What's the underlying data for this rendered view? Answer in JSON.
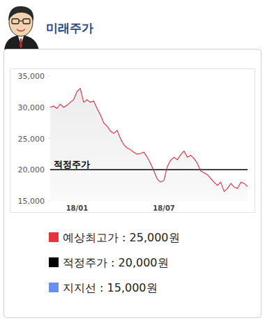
{
  "chart_data": {
    "type": "line",
    "title": "미래주가",
    "categories": [
      null,
      null,
      null,
      null,
      null,
      null,
      null,
      null,
      "18/01",
      null,
      null,
      null,
      null,
      null,
      null,
      null,
      null,
      null,
      null,
      null,
      null,
      null,
      null,
      null,
      null,
      null,
      null,
      null,
      null,
      null,
      null,
      null,
      null,
      null,
      "18/07",
      null,
      null,
      null,
      null,
      null,
      null,
      null,
      null,
      null,
      null,
      null,
      null,
      null,
      null,
      null,
      null,
      null,
      null,
      null,
      null,
      null,
      null,
      null,
      null,
      null
    ],
    "values": [
      30000,
      30200,
      29800,
      30500,
      30000,
      30300,
      30800,
      31200,
      32500,
      33000,
      30800,
      31200,
      30800,
      31000,
      29800,
      28800,
      27500,
      27000,
      26200,
      25800,
      26300,
      25000,
      24000,
      23500,
      23200,
      22800,
      22500,
      22600,
      22800,
      22000,
      21000,
      19800,
      18500,
      18000,
      18300,
      20500,
      21500,
      22000,
      21600,
      22400,
      23000,
      22000,
      22300,
      21800,
      21000,
      19800,
      19500,
      19200,
      18600,
      18000,
      17500,
      18000,
      16500,
      17000,
      17800,
      17200,
      17000,
      18000,
      17800,
      17300
    ],
    "color": "#e8283c",
    "ylim": [
      15000,
      35000
    ],
    "yticks": [
      {
        "value": 15000,
        "label": "15,000"
      },
      {
        "value": 20000,
        "label": "20,000"
      },
      {
        "value": 25000,
        "label": "25,000"
      },
      {
        "value": 30000,
        "label": "30,000"
      },
      {
        "value": 35000,
        "label": "35,000"
      }
    ],
    "levels": [
      {
        "name": "예상최고가",
        "label": "예상최고가 : 25,000원",
        "value": 25000,
        "color": "#e8323c",
        "line_style": "none"
      },
      {
        "name": "적정주가",
        "label": "적정주가 : 20,000원",
        "value": 20000,
        "color": "#000000",
        "line_style": "solid"
      },
      {
        "name": "지지선",
        "label": "지지선 : 15,000원",
        "value": 15000,
        "color": "#6b8ff0",
        "line_style": "none"
      }
    ]
  }
}
